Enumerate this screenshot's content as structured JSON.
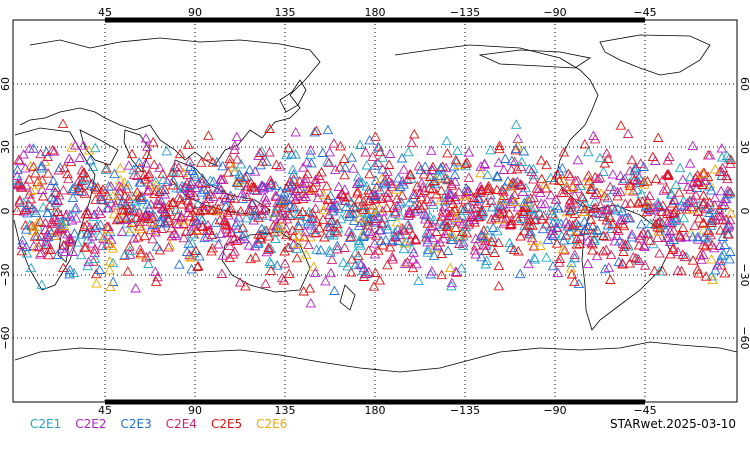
{
  "map": {
    "top_lon_ticks": [
      "45",
      "90",
      "135",
      "180",
      "−135",
      "−90",
      "−45"
    ],
    "bottom_lon_ticks": [
      "45",
      "90",
      "135",
      "180",
      "−135",
      "−90",
      "−45"
    ],
    "left_lat_ticks": [
      "60",
      "30",
      "0",
      "−30",
      "−60"
    ],
    "right_lat_ticks": [
      "60",
      "30",
      "0",
      "−30",
      "−60"
    ],
    "lat_range": [
      -90,
      90
    ],
    "lon_center": 180,
    "grid": "dotted",
    "observation_lat_band": [
      -45,
      45
    ],
    "marker": "open-triangle"
  },
  "legend": {
    "items": [
      {
        "label": "C2E1",
        "color": "#1fa5c8"
      },
      {
        "label": "C2E2",
        "color": "#b41fc8"
      },
      {
        "label": "C2E3",
        "color": "#1f6fd8"
      },
      {
        "label": "C2E4",
        "color": "#d01f6a"
      },
      {
        "label": "C2E5",
        "color": "#e01010"
      },
      {
        "label": "C2E6",
        "color": "#f0a800"
      }
    ]
  },
  "stamp": "STARwet.2025-03-10"
}
